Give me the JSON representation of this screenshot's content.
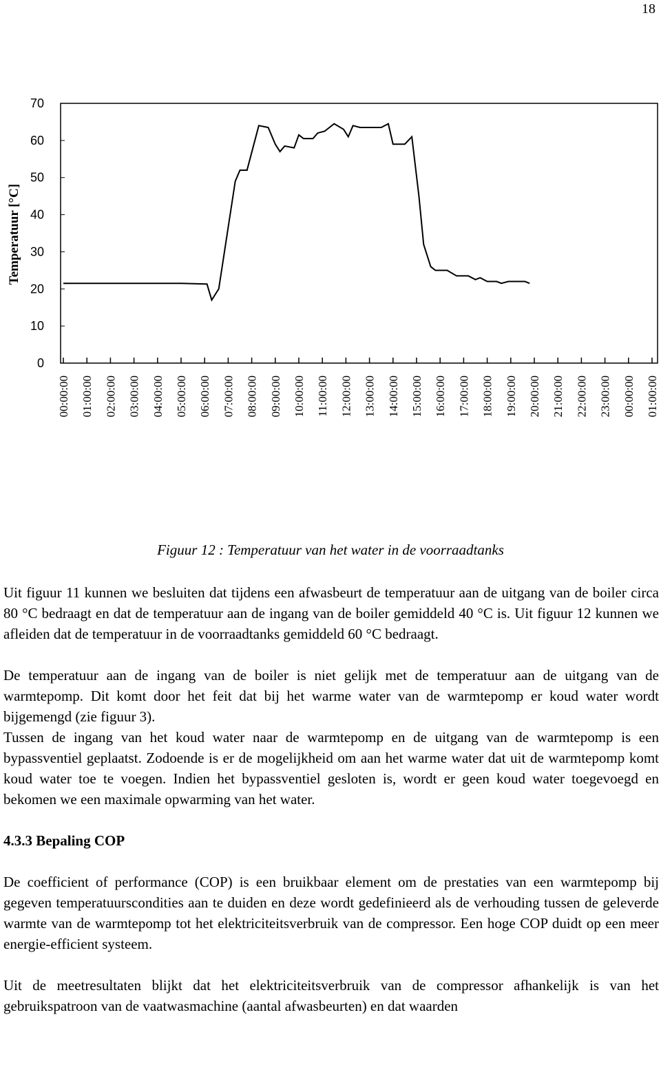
{
  "page_number": "18",
  "chart_data": {
    "type": "line",
    "ylabel": "Temperatuur [°C]",
    "x": [
      0,
      2,
      4,
      5,
      6.1,
      6.3,
      6.6,
      7.3,
      7.5,
      7.8,
      8.3,
      8.7,
      9.0,
      9.2,
      9.4,
      9.8,
      10.0,
      10.2,
      10.6,
      10.8,
      11.1,
      11.5,
      11.9,
      12.1,
      12.3,
      12.6,
      13.5,
      13.8,
      14.0,
      14.5,
      14.8,
      15.1,
      15.3,
      15.6,
      15.8,
      16.3,
      16.7,
      17.2,
      17.5,
      17.7,
      18.0,
      18.4,
      18.6,
      18.9,
      19.6,
      19.8
    ],
    "values": [
      21.5,
      21.5,
      21.5,
      21.5,
      21.3,
      17,
      20,
      49,
      52,
      52,
      64,
      63.5,
      59,
      57,
      58.5,
      58,
      61.5,
      60.5,
      60.5,
      62,
      62.5,
      64.5,
      63,
      61,
      64,
      63.5,
      63.5,
      64.5,
      59,
      59,
      61,
      45,
      32,
      26,
      25,
      25,
      23.5,
      23.5,
      22.5,
      23,
      22,
      22,
      21.5,
      22,
      22,
      21.5
    ],
    "color": "#000000",
    "xlim": [
      0,
      25
    ],
    "ylim": [
      0,
      70
    ],
    "yticks": [
      0,
      10,
      20,
      30,
      40,
      50,
      60,
      70
    ],
    "xticks": [
      {
        "value": 0,
        "label": "00:00:00"
      },
      {
        "value": 1,
        "label": "01:00:00"
      },
      {
        "value": 2,
        "label": "02:00:00"
      },
      {
        "value": 3,
        "label": "03:00:00"
      },
      {
        "value": 4,
        "label": "04:00:00"
      },
      {
        "value": 5,
        "label": "05:00:00"
      },
      {
        "value": 6,
        "label": "06:00:00"
      },
      {
        "value": 7,
        "label": "07:00:00"
      },
      {
        "value": 8,
        "label": "08:00:00"
      },
      {
        "value": 9,
        "label": "09:00:00"
      },
      {
        "value": 10,
        "label": "10:00:00"
      },
      {
        "value": 11,
        "label": "11:00:00"
      },
      {
        "value": 12,
        "label": "12:00:00"
      },
      {
        "value": 13,
        "label": "13:00:00"
      },
      {
        "value": 14,
        "label": "14:00:00"
      },
      {
        "value": 15,
        "label": "15:00:00"
      },
      {
        "value": 16,
        "label": "16:00:00"
      },
      {
        "value": 17,
        "label": "17:00:00"
      },
      {
        "value": 18,
        "label": "18:00:00"
      },
      {
        "value": 19,
        "label": "19:00:00"
      },
      {
        "value": 20,
        "label": "20:00:00"
      },
      {
        "value": 21,
        "label": "21:00:00"
      },
      {
        "value": 22,
        "label": "22:00:00"
      },
      {
        "value": 23,
        "label": "23:00:00"
      },
      {
        "value": 24,
        "label": "00:00:00"
      },
      {
        "value": 25,
        "label": "01:00:00"
      }
    ]
  },
  "caption": "Figuur 12 : Temperatuur van het water in de voorraadtanks",
  "paragraphs": [
    "Uit figuur 11 kunnen we besluiten dat tijdens een afwasbeurt de temperatuur aan de uitgang van de boiler circa 80 °C bedraagt en dat de temperatuur aan de ingang van de boiler gemiddeld 40 °C is. Uit figuur 12 kunnen we afleiden dat de temperatuur in de voorraadtanks gemiddeld 60 °C bedraagt.",
    "De temperatuur aan de ingang van de boiler is niet gelijk met de temperatuur aan de uitgang van de warmtepomp. Dit komt door het feit dat bij het warme water van de warmtepomp er koud water wordt bijgemengd (zie figuur 3).",
    "Tussen de ingang van het koud water naar de warmtepomp en de uitgang van de warmtepomp is een bypassventiel geplaatst. Zodoende is er de mogelijkheid om aan het warme water dat uit de warmtepomp komt koud water toe te voegen. Indien het bypassventiel gesloten is, wordt er geen koud water toegevoegd en bekomen we een maximale opwarming van het water."
  ],
  "section": {
    "heading": "4.3.3 Bepaling COP",
    "paragraphs": [
      "De coefficient of performance (COP) is een bruikbaar element om de prestaties van een warmtepomp bij gegeven temperatuurscondities aan te duiden en deze wordt gedefinieerd als de verhouding tussen de geleverde warmte van de warmtepomp tot het elektriciteitsverbruik van de compressor. Een hoge COP duidt op een meer energie-efficient systeem.",
      "Uit de meetresultaten blijkt dat het elektriciteitsverbruik van de compressor afhankelijk is van het gebruikspatroon van de vaatwasmachine (aantal afwasbeurten) en dat waarden"
    ]
  }
}
